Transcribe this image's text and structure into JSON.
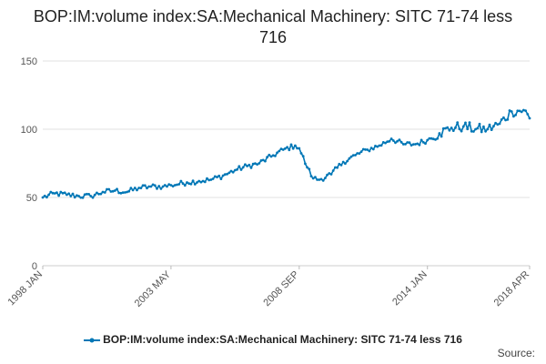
{
  "chart_data": {
    "type": "line",
    "title": "BOP:IM:volume index:SA:Mechanical Machinery: SITC 71-74 less 716",
    "xlabel": "",
    "ylabel": "",
    "ylim": [
      0,
      150
    ],
    "yticks": [
      0,
      50,
      100,
      150
    ],
    "x_start": "1998 JAN",
    "x_end": "2018 APR",
    "xticks": [
      "1998 JAN",
      "2003 MAY",
      "2008 SEP",
      "2014 JAN",
      "2018 APR"
    ],
    "grid": true,
    "legend_position": "bottom",
    "color": "#0077b6",
    "series": [
      {
        "name": "BOP:IM:volume index:SA:Mechanical Machinery: SITC 71-74 less 716",
        "sampled_points": [
          {
            "date": "1998 JAN",
            "value": 50
          },
          {
            "date": "1998 JUL",
            "value": 53
          },
          {
            "date": "1999 JAN",
            "value": 52
          },
          {
            "date": "1999 JUL",
            "value": 51
          },
          {
            "date": "2000 JAN",
            "value": 51
          },
          {
            "date": "2000 JUL",
            "value": 54
          },
          {
            "date": "2001 JAN",
            "value": 55
          },
          {
            "date": "2001 JUL",
            "value": 54
          },
          {
            "date": "2002 JAN",
            "value": 57
          },
          {
            "date": "2002 JUL",
            "value": 58
          },
          {
            "date": "2003 JAN",
            "value": 58
          },
          {
            "date": "2003 MAY",
            "value": 59
          },
          {
            "date": "2004 JAN",
            "value": 61
          },
          {
            "date": "2004 JUL",
            "value": 62
          },
          {
            "date": "2005 JAN",
            "value": 63
          },
          {
            "date": "2005 JUL",
            "value": 66
          },
          {
            "date": "2006 JAN",
            "value": 70
          },
          {
            "date": "2006 JUL",
            "value": 73
          },
          {
            "date": "2007 JAN",
            "value": 75
          },
          {
            "date": "2007 JUL",
            "value": 80
          },
          {
            "date": "2008 JAN",
            "value": 85
          },
          {
            "date": "2008 JUL",
            "value": 88
          },
          {
            "date": "2008 SEP",
            "value": 86
          },
          {
            "date": "2009 JAN",
            "value": 72
          },
          {
            "date": "2009 APR",
            "value": 64
          },
          {
            "date": "2009 JUL",
            "value": 63
          },
          {
            "date": "2010 JAN",
            "value": 67
          },
          {
            "date": "2010 JUL",
            "value": 76
          },
          {
            "date": "2011 JAN",
            "value": 81
          },
          {
            "date": "2011 JUL",
            "value": 85
          },
          {
            "date": "2012 JAN",
            "value": 88
          },
          {
            "date": "2012 JUL",
            "value": 93
          },
          {
            "date": "2013 JAN",
            "value": 89
          },
          {
            "date": "2013 JUL",
            "value": 89
          },
          {
            "date": "2014 JAN",
            "value": 92
          },
          {
            "date": "2014 JUL",
            "value": 97
          },
          {
            "date": "2015 JAN",
            "value": 101
          },
          {
            "date": "2015 JUL",
            "value": 102
          },
          {
            "date": "2016 JAN",
            "value": 100
          },
          {
            "date": "2016 JUL",
            "value": 100
          },
          {
            "date": "2017 JAN",
            "value": 104
          },
          {
            "date": "2017 JUL",
            "value": 113
          },
          {
            "date": "2018 JAN",
            "value": 114
          },
          {
            "date": "2018 APR",
            "value": 108
          }
        ]
      }
    ]
  },
  "legend": {
    "label": "BOP:IM:volume index:SA:Mechanical Machinery: SITC 71-74 less 716"
  },
  "footer": {
    "source_label": "Source:"
  }
}
